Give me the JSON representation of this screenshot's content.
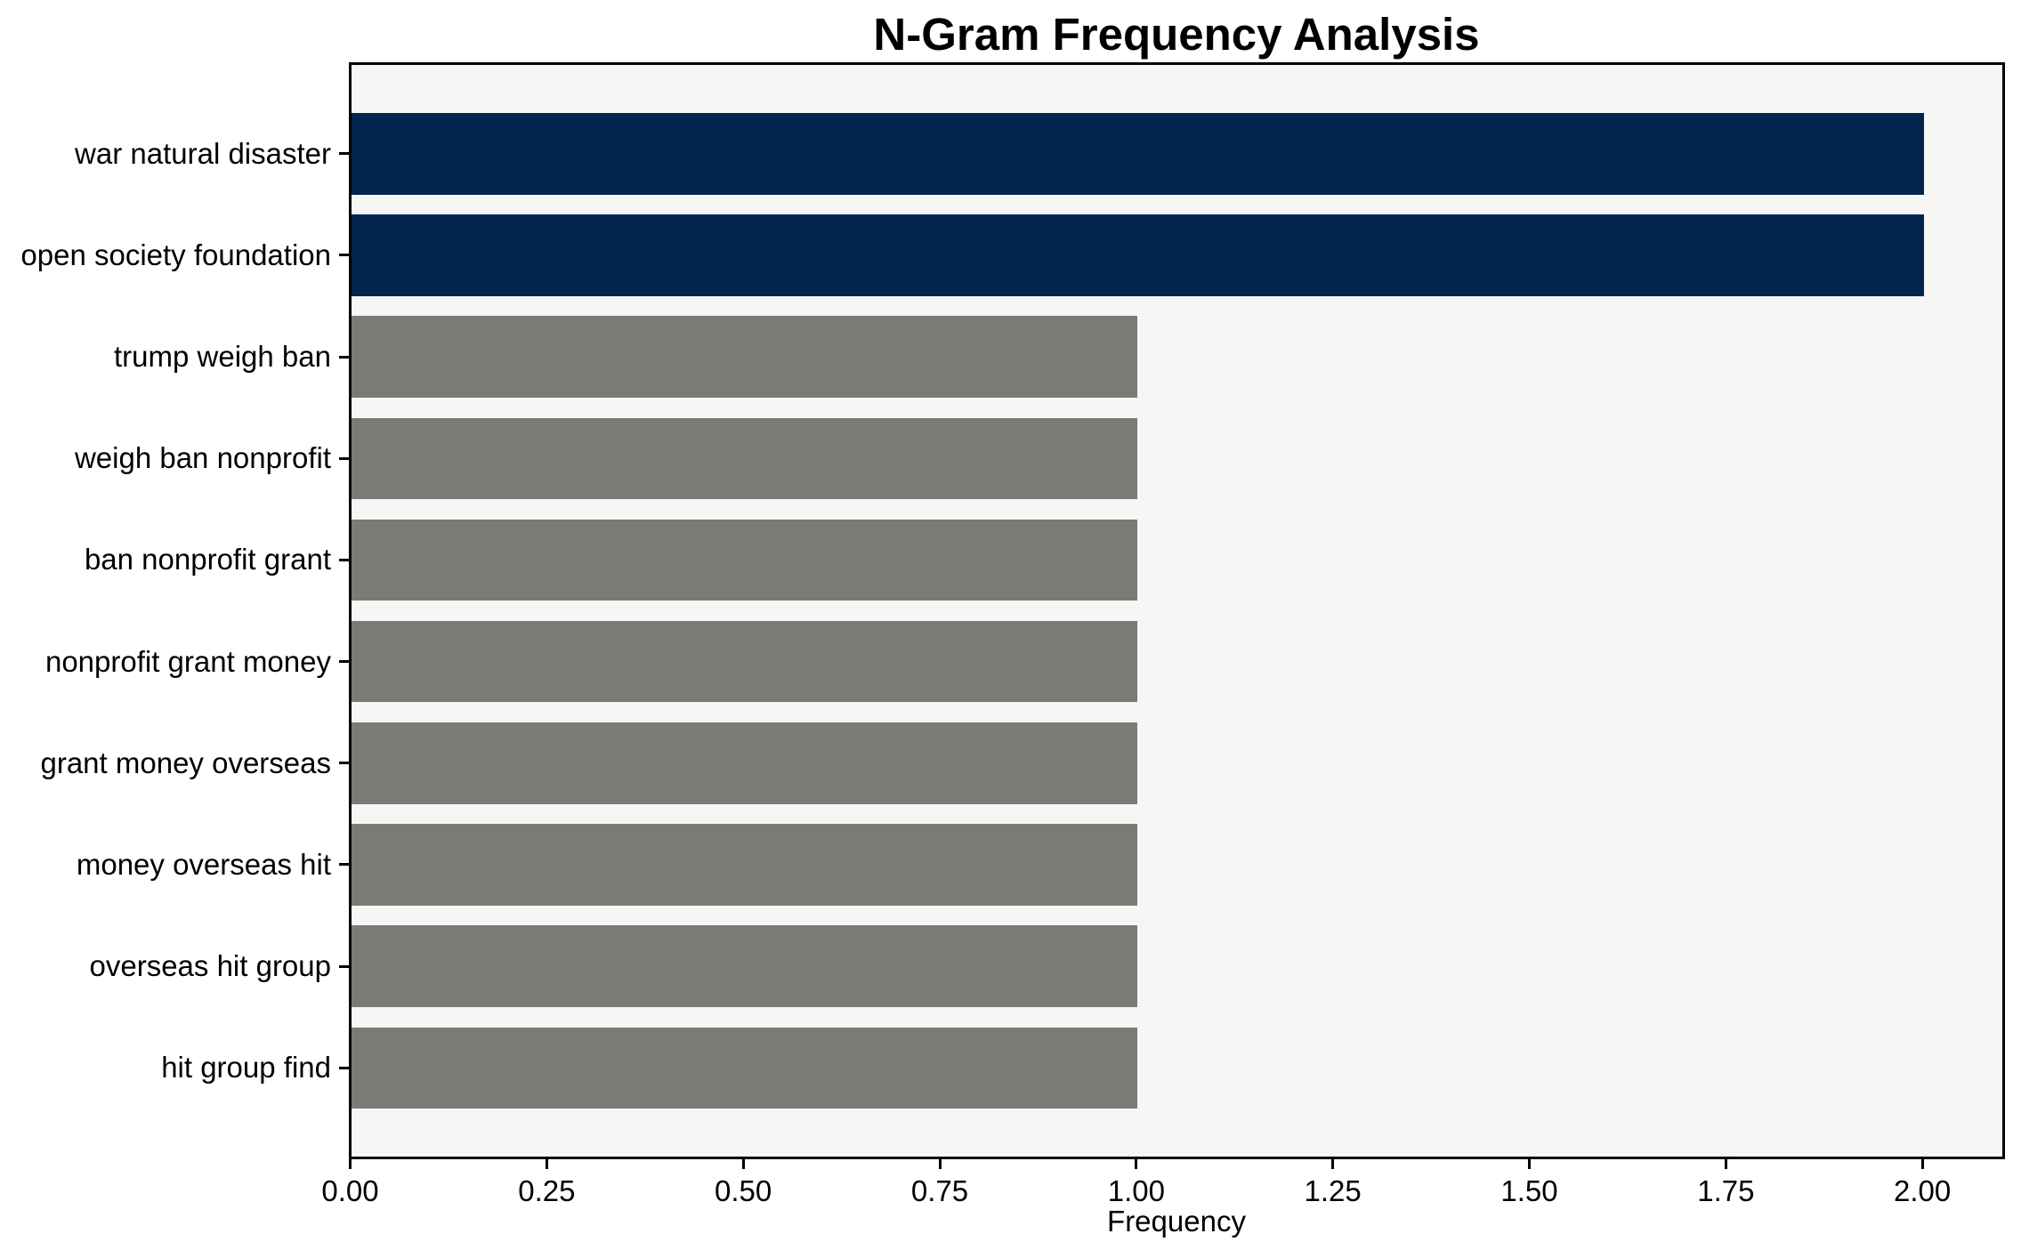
{
  "chart_data": {
    "type": "bar",
    "orientation": "horizontal",
    "title": "N-Gram Frequency Analysis",
    "xlabel": "Frequency",
    "ylabel": "",
    "categories": [
      "war natural disaster",
      "open society foundation",
      "trump weigh ban",
      "weigh ban nonprofit",
      "ban nonprofit grant",
      "nonprofit grant money",
      "grant money overseas",
      "money overseas hit",
      "overseas hit group",
      "hit group find"
    ],
    "values": [
      2,
      2,
      1,
      1,
      1,
      1,
      1,
      1,
      1,
      1
    ],
    "bar_colors": [
      "#02254e",
      "#02254e",
      "#7b7a77",
      "#7b7a77",
      "#7b7a77",
      "#7b7a77",
      "#7b7a77",
      "#7b7a77",
      "#7b7a77",
      "#7b7a77"
    ],
    "xlim": [
      0,
      2.1
    ],
    "xticks": [
      0,
      0.25,
      0.5,
      0.75,
      1.0,
      1.25,
      1.5,
      1.75,
      2.0
    ],
    "xtick_labels": [
      "0.00",
      "0.25",
      "0.50",
      "0.75",
      "1.00",
      "1.25",
      "1.50",
      "1.75",
      "2.00"
    ],
    "grid": false,
    "legend": false,
    "plot_background": "#f7f6f5",
    "figure_background": "#ffffff",
    "colors": {
      "high_frequency_bar": "#02254e",
      "low_frequency_bar": "#7b7a77",
      "spine": "#000000",
      "text": "#000000"
    }
  }
}
